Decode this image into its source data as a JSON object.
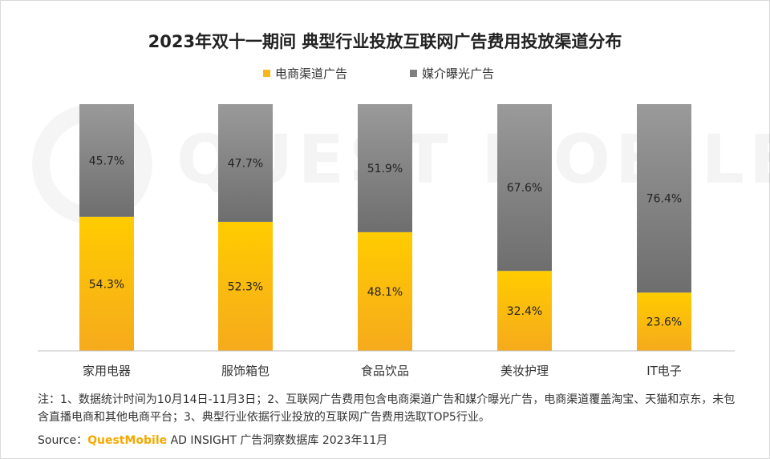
{
  "title": "2023年双十一期间 典型行业投放互联网广告费用投放渠道分布",
  "legend": [
    {
      "label": "电商渠道广告",
      "color": "#F8B81C"
    },
    {
      "label": "媒介曝光广告",
      "color": "#7F7F7F"
    }
  ],
  "watermark": "QUEST MOBILE",
  "chart_data": {
    "type": "bar",
    "stacked": true,
    "categories": [
      "家用电器",
      "服饰箱包",
      "食品饮品",
      "美妆护理",
      "IT电子"
    ],
    "series": [
      {
        "name": "电商渠道广告",
        "values": [
          54.3,
          52.3,
          48.1,
          32.4,
          23.6
        ],
        "labels": [
          "54.3%",
          "52.3%",
          "48.1%",
          "32.4%",
          "23.6%"
        ],
        "color": "#F8B81C"
      },
      {
        "name": "媒介曝光广告",
        "values": [
          45.7,
          47.7,
          51.9,
          67.6,
          76.4
        ],
        "labels": [
          "45.7%",
          "47.7%",
          "51.9%",
          "67.6%",
          "76.4%"
        ],
        "color": "#7F7F7F"
      }
    ],
    "ylim": [
      0,
      100
    ],
    "grid": false
  },
  "note": "注：1、数据统计时间为10月14日-11月3日；2、互联网广告费用包含电商渠道广告和媒介曝光广告，电商渠道覆盖淘宝、天猫和京东，未包含直播电商和其他电商平台；3、典型行业依据行业投放的互联网广告费用选取TOP5行业。",
  "source": {
    "prefix": "Source：",
    "brand": "QuestMobile",
    "suffix": " AD INSIGHT 广告洞察数据库 2023年11月"
  }
}
